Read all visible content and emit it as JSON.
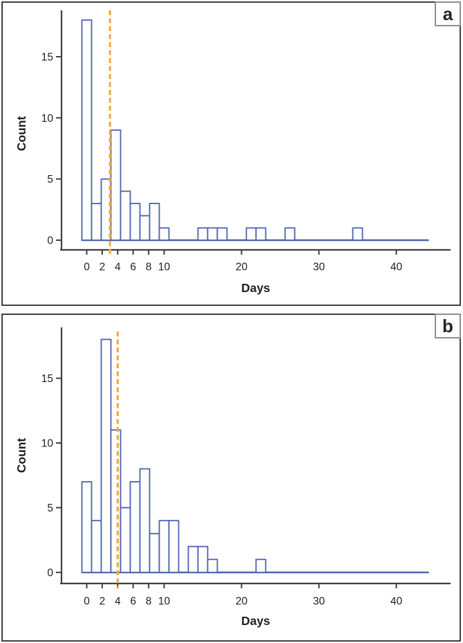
{
  "figure": {
    "description": "Two stacked histogram panels of counts by days, each with an orange dashed vertical reference (median) line",
    "panel_labels": [
      "a",
      "b"
    ]
  },
  "colors": {
    "bar_outline": "#4a63af",
    "baseline": "#4a63af",
    "reference_line": "#f7a83c",
    "axis": "#3f3f3f",
    "text": "#1f1f1f",
    "panel_border": "#3f3f3f",
    "badge_border": "#8f8f8f",
    "background": "#ffffff"
  },
  "chart_data": [
    {
      "panel_label": "a",
      "type": "bar",
      "title": "",
      "xlabel": "Days",
      "ylabel": "Count",
      "bin_width": 1.25,
      "bars": [
        {
          "x": 0,
          "count": 18
        },
        {
          "x": 1.25,
          "count": 3
        },
        {
          "x": 2.5,
          "count": 5
        },
        {
          "x": 3.75,
          "count": 9
        },
        {
          "x": 5,
          "count": 4
        },
        {
          "x": 6.25,
          "count": 3
        },
        {
          "x": 7.5,
          "count": 2
        },
        {
          "x": 8.75,
          "count": 3
        },
        {
          "x": 10,
          "count": 1
        },
        {
          "x": 15,
          "count": 1
        },
        {
          "x": 16.25,
          "count": 1
        },
        {
          "x": 17.5,
          "count": 1
        },
        {
          "x": 21.25,
          "count": 1
        },
        {
          "x": 22.5,
          "count": 1
        },
        {
          "x": 26.25,
          "count": 1
        },
        {
          "x": 35,
          "count": 1
        }
      ],
      "reference_line_x": 3,
      "x_ticks": [
        0,
        2,
        4,
        6,
        8,
        10,
        20,
        30,
        40
      ],
      "y_ticks": [
        0,
        5,
        10,
        15
      ],
      "xlim": [
        -3.5,
        47
      ],
      "ylim": [
        0,
        19.5
      ],
      "grid": false,
      "legend": "none"
    },
    {
      "panel_label": "b",
      "type": "bar",
      "title": "",
      "xlabel": "Days",
      "ylabel": "Count",
      "bin_width": 1.25,
      "bars": [
        {
          "x": 0,
          "count": 7
        },
        {
          "x": 1.25,
          "count": 4
        },
        {
          "x": 2.5,
          "count": 18
        },
        {
          "x": 3.75,
          "count": 11
        },
        {
          "x": 5,
          "count": 5
        },
        {
          "x": 6.25,
          "count": 7
        },
        {
          "x": 7.5,
          "count": 8
        },
        {
          "x": 8.75,
          "count": 3
        },
        {
          "x": 10,
          "count": 4
        },
        {
          "x": 11.25,
          "count": 4
        },
        {
          "x": 13.75,
          "count": 2
        },
        {
          "x": 15,
          "count": 2
        },
        {
          "x": 16.25,
          "count": 1
        },
        {
          "x": 22.5,
          "count": 1
        }
      ],
      "reference_line_x": 4,
      "x_ticks": [
        0,
        2,
        4,
        6,
        8,
        10,
        20,
        30,
        40
      ],
      "y_ticks": [
        0,
        5,
        10,
        15
      ],
      "xlim": [
        -3.5,
        47
      ],
      "ylim": [
        0,
        19.5
      ],
      "grid": false,
      "legend": "none"
    }
  ]
}
